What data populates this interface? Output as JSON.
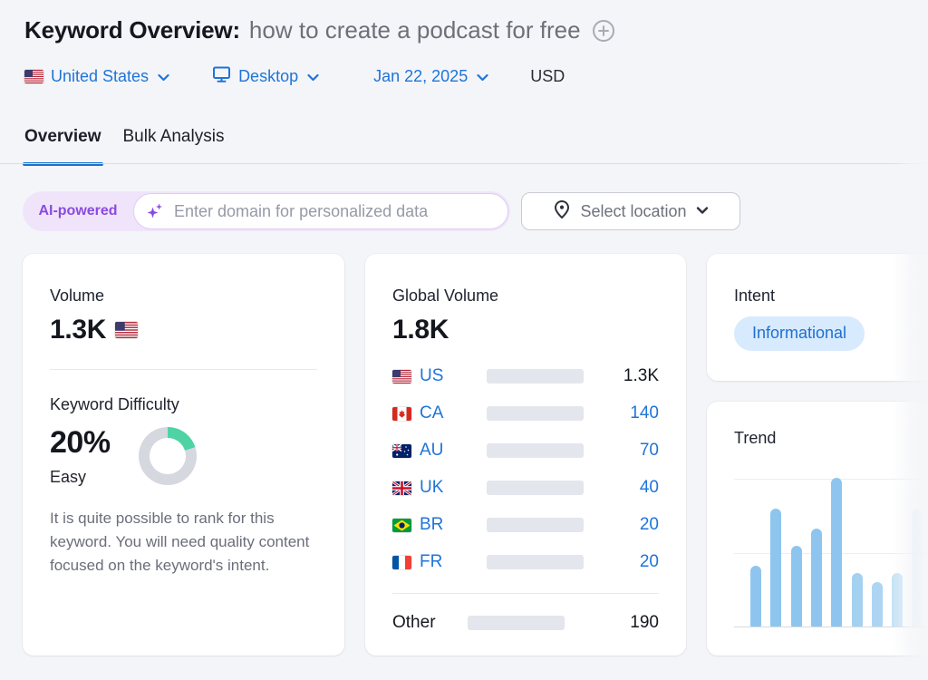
{
  "header": {
    "title": "Keyword Overview:",
    "query": "how to create a podcast for free",
    "filters": {
      "country_label": "United States",
      "device_label": "Desktop",
      "date_label": "Jan 22, 2025",
      "currency_label": "USD"
    }
  },
  "tabs": {
    "overview": "Overview",
    "bulk": "Bulk Analysis"
  },
  "ai_bar": {
    "badge_label": "AI-powered",
    "input_placeholder": "Enter domain for personalized data",
    "input_value": "",
    "location_label": "Select location"
  },
  "volume_card": {
    "label": "Volume",
    "value": "1.3K",
    "kd": {
      "label": "Keyword Difficulty",
      "value": "20%",
      "percent": 20,
      "level": "Easy",
      "description": "It is quite possible to rank for this keyword. You will need quality content focused on the keyword's intent."
    }
  },
  "global_volume_card": {
    "label": "Global Volume",
    "value": "1.8K",
    "rows": [
      {
        "code": "US",
        "flag": "us-flag-icon",
        "value": "1.3K",
        "pct": 74,
        "emphasis": true
      },
      {
        "code": "CA",
        "flag": "ca-flag-icon",
        "value": "140",
        "pct": 6,
        "emphasis": false
      },
      {
        "code": "AU",
        "flag": "au-flag-icon",
        "value": "70",
        "pct": 4,
        "emphasis": false
      },
      {
        "code": "UK",
        "flag": "uk-flag-icon",
        "value": "40",
        "pct": 4,
        "emphasis": false
      },
      {
        "code": "BR",
        "flag": "br-flag-icon",
        "value": "20",
        "pct": 4,
        "emphasis": false
      },
      {
        "code": "FR",
        "flag": "fr-flag-icon",
        "value": "20",
        "pct": 4,
        "emphasis": false
      }
    ],
    "other_row": {
      "label": "Other",
      "value": "190",
      "pct": 12
    }
  },
  "intent_card": {
    "label": "Intent",
    "badge": "Informational"
  },
  "trend_card": {
    "label": "Trend"
  },
  "chart_data": {
    "type": "bar",
    "title": "Trend",
    "xlabel": "",
    "ylabel": "",
    "categories": [
      "",
      "",
      "",
      "",
      "",
      "",
      "",
      "",
      ""
    ],
    "values_normalized": [
      0.41,
      0.79,
      0.54,
      0.66,
      1.0,
      0.36,
      0.3,
      0.36,
      0.79
    ],
    "ylim": [
      0,
      1
    ],
    "grid": "two horizontal gridlines, no axis labels",
    "bar_color": "#8ec5ee",
    "bar_opacities": [
      1,
      1,
      1,
      1,
      1,
      0.8,
      0.72,
      0.5,
      0.28
    ],
    "note": "monthly search-volume trend sparkline, right side fades out of viewport"
  },
  "icons": {
    "title_action": "plus-circle-icon",
    "country": "us-flag-icon",
    "device": "monitor-icon",
    "dropdown": "chevron-down-icon",
    "ai_input": "sparkles-icon",
    "location": "pin-icon"
  },
  "colors": {
    "page_bg": "#f4f5f8",
    "link_blue": "#1f74d8",
    "tab_underline": "#1871cd",
    "bar_fill_primary": "#1e78dc",
    "bar_fill_secondary": "#47b3f8",
    "bar_track": "#e3e6ec",
    "kd_green": "#4ed3a4",
    "kd_gray": "#d5d8df",
    "ai_purple": "#8a4be0",
    "ai_pill_bg": "#f0e4fb",
    "intent_badge_bg": "#d8eafd",
    "intent_badge_text": "#1e70d0"
  }
}
